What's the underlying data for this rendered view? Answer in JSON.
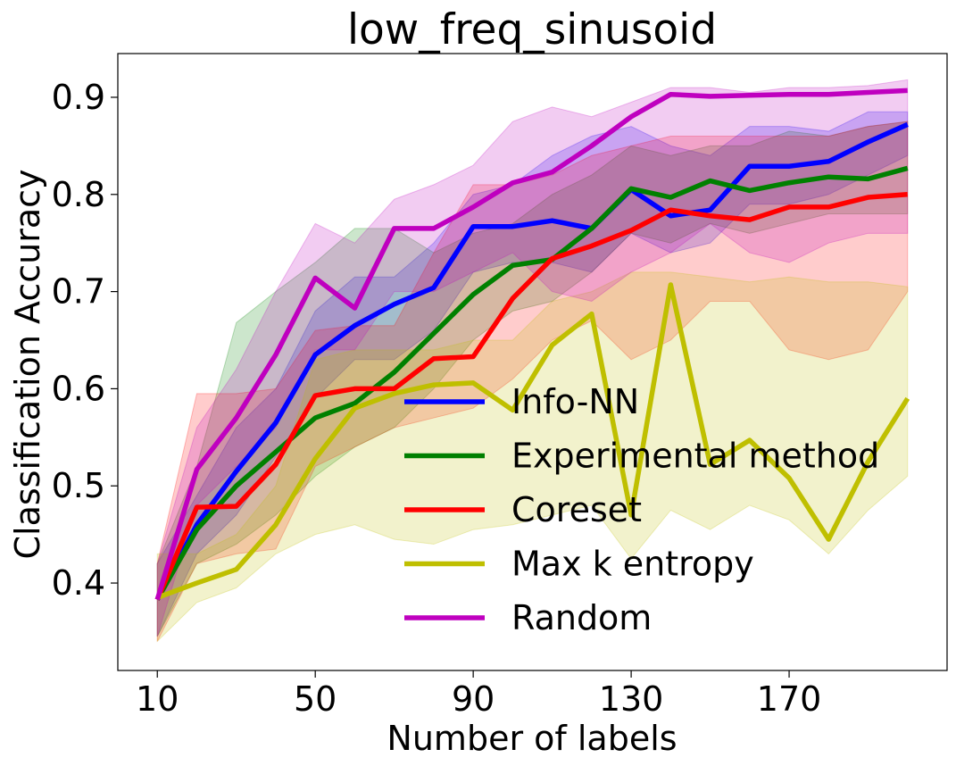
{
  "chart_data": {
    "type": "line",
    "title": "low_freq_sinusoid",
    "xlabel": "Number of labels",
    "ylabel": "Classification Accuracy",
    "xlim": [
      0,
      210
    ],
    "ylim": [
      0.31,
      0.945
    ],
    "xticks": [
      10,
      50,
      90,
      130,
      170
    ],
    "yticks": [
      0.4,
      0.5,
      0.6,
      0.7,
      0.8,
      0.9
    ],
    "ytick_labels": [
      "0.4",
      "0.5",
      "0.6",
      "0.7",
      "0.8",
      "0.9"
    ],
    "grid": false,
    "legend": "lower-right",
    "x": [
      10,
      20,
      30,
      40,
      50,
      60,
      70,
      80,
      90,
      100,
      110,
      120,
      130,
      140,
      150,
      160,
      170,
      180,
      190,
      200
    ],
    "series": [
      {
        "name": "Info-NN",
        "color": "#0000ff",
        "values": [
          0.383,
          0.46,
          0.515,
          0.565,
          0.635,
          0.665,
          0.687,
          0.704,
          0.767,
          0.767,
          0.773,
          0.765,
          0.805,
          0.778,
          0.784,
          0.829,
          0.829,
          0.834,
          0.854,
          0.872
        ],
        "lower": [
          0.345,
          0.43,
          0.47,
          0.53,
          0.59,
          0.63,
          0.63,
          0.66,
          0.72,
          0.73,
          0.73,
          0.72,
          0.76,
          0.74,
          0.75,
          0.79,
          0.79,
          0.8,
          0.82,
          0.84
        ],
        "upper": [
          0.42,
          0.49,
          0.56,
          0.6,
          0.68,
          0.715,
          0.715,
          0.75,
          0.8,
          0.81,
          0.84,
          0.86,
          0.87,
          0.85,
          0.84,
          0.87,
          0.87,
          0.865,
          0.885,
          0.885
        ]
      },
      {
        "name": "Experimental method",
        "color": "#008000",
        "values": [
          0.383,
          0.455,
          0.5,
          0.535,
          0.57,
          0.585,
          0.617,
          0.657,
          0.697,
          0.727,
          0.733,
          0.765,
          0.806,
          0.797,
          0.814,
          0.804,
          0.812,
          0.818,
          0.816,
          0.827
        ],
        "lower": [
          0.345,
          0.42,
          0.44,
          0.47,
          0.51,
          0.54,
          0.56,
          0.6,
          0.65,
          0.68,
          0.69,
          0.72,
          0.76,
          0.75,
          0.77,
          0.76,
          0.77,
          0.78,
          0.78,
          0.78
        ],
        "upper": [
          0.42,
          0.52,
          0.668,
          0.7,
          0.73,
          0.765,
          0.765,
          0.74,
          0.76,
          0.77,
          0.8,
          0.82,
          0.85,
          0.84,
          0.85,
          0.85,
          0.865,
          0.86,
          0.87,
          0.875
        ]
      },
      {
        "name": "Coreset",
        "color": "#ff0000",
        "values": [
          0.383,
          0.478,
          0.479,
          0.522,
          0.593,
          0.6,
          0.6,
          0.631,
          0.633,
          0.693,
          0.734,
          0.747,
          0.763,
          0.784,
          0.778,
          0.774,
          0.787,
          0.787,
          0.797,
          0.8
        ],
        "lower": [
          0.34,
          0.42,
          0.43,
          0.435,
          0.52,
          0.54,
          0.56,
          0.57,
          0.58,
          0.61,
          0.65,
          0.67,
          0.63,
          0.65,
          0.69,
          0.69,
          0.64,
          0.63,
          0.64,
          0.7
        ],
        "upper": [
          0.42,
          0.595,
          0.595,
          0.6,
          0.66,
          0.665,
          0.665,
          0.74,
          0.81,
          0.81,
          0.82,
          0.84,
          0.85,
          0.86,
          0.86,
          0.86,
          0.86,
          0.86,
          0.87,
          0.875
        ]
      },
      {
        "name": "Max k entropy",
        "color": "#bfbf00",
        "values": [
          0.385,
          0.4,
          0.414,
          0.46,
          0.528,
          0.58,
          0.595,
          0.604,
          0.606,
          0.578,
          0.645,
          0.677,
          0.47,
          0.707,
          0.522,
          0.547,
          0.508,
          0.445,
          0.525,
          0.59
        ],
        "lower": [
          0.34,
          0.38,
          0.395,
          0.43,
          0.45,
          0.46,
          0.445,
          0.44,
          0.455,
          0.46,
          0.47,
          0.48,
          0.425,
          0.475,
          0.455,
          0.48,
          0.465,
          0.43,
          0.475,
          0.51
        ],
        "upper": [
          0.43,
          0.43,
          0.45,
          0.5,
          0.63,
          0.64,
          0.64,
          0.64,
          0.65,
          0.65,
          0.69,
          0.7,
          0.72,
          0.72,
          0.715,
          0.71,
          0.715,
          0.71,
          0.71,
          0.705
        ]
      },
      {
        "name": "Random",
        "color": "#bf00bf",
        "values": [
          0.383,
          0.517,
          0.57,
          0.635,
          0.714,
          0.683,
          0.765,
          0.765,
          0.787,
          0.812,
          0.823,
          0.85,
          0.88,
          0.903,
          0.901,
          0.902,
          0.903,
          0.903,
          0.905,
          0.907
        ],
        "lower": [
          0.345,
          0.48,
          0.52,
          0.56,
          0.64,
          0.64,
          0.7,
          0.7,
          0.72,
          0.74,
          0.7,
          0.69,
          0.72,
          0.74,
          0.77,
          0.74,
          0.73,
          0.75,
          0.76,
          0.76
        ],
        "upper": [
          0.42,
          0.56,
          0.62,
          0.7,
          0.77,
          0.75,
          0.795,
          0.81,
          0.83,
          0.875,
          0.89,
          0.88,
          0.895,
          0.91,
          0.91,
          0.905,
          0.91,
          0.91,
          0.912,
          0.918
        ]
      }
    ]
  }
}
